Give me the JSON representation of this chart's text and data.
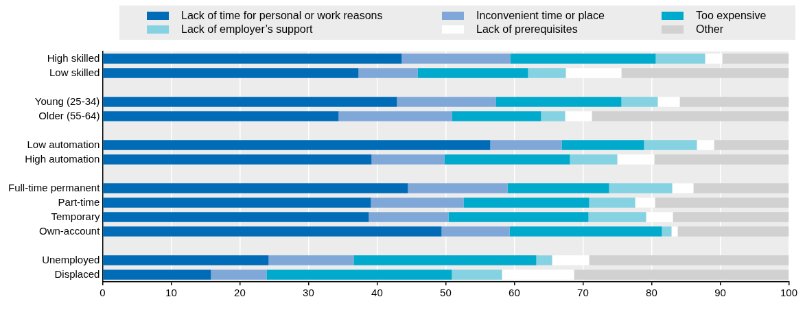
{
  "chart_data": {
    "type": "bar",
    "orientation": "horizontal",
    "stacked": true,
    "legend": "top",
    "grid": "x",
    "categories": [
      "High skilled",
      "Low skilled",
      null,
      "Young (25-34)",
      "Older (55-64)",
      null,
      "Low automation",
      "High automation",
      null,
      "Full-time permanent",
      "Part-time",
      "Temporary",
      "Own-account",
      null,
      "Unemployed",
      "Displaced"
    ],
    "xlim": [
      0,
      100
    ],
    "xticks": [
      0,
      10,
      20,
      30,
      40,
      50,
      60,
      70,
      80,
      90,
      100
    ],
    "series": [
      {
        "name": "Lack of time for personal or work reasons",
        "color": "#006bb6",
        "values": [
          43.6,
          37.3,
          null,
          42.9,
          34.4,
          null,
          56.5,
          39.2,
          null,
          44.5,
          39.1,
          38.8,
          49.4,
          null,
          24.2,
          15.8
        ]
      },
      {
        "name": "Inconvenient time or place",
        "color": "#7fa8d9",
        "values": [
          15.8,
          8.6,
          null,
          14.4,
          16.5,
          null,
          10.4,
          10.6,
          null,
          14.5,
          13.5,
          11.6,
          9.9,
          null,
          12.4,
          8.1
        ]
      },
      {
        "name": "Too expensive",
        "color": "#00aacc",
        "values": [
          21.2,
          16.1,
          null,
          18.3,
          13.0,
          null,
          12.0,
          18.3,
          null,
          14.8,
          18.3,
          20.4,
          22.2,
          null,
          26.6,
          27.0
        ]
      },
      {
        "name": "Lack of employer’s support",
        "color": "#85d2e2",
        "values": [
          7.2,
          5.5,
          null,
          5.3,
          3.5,
          null,
          7.7,
          6.9,
          null,
          9.2,
          6.7,
          8.4,
          1.4,
          null,
          2.3,
          7.3
        ]
      },
      {
        "name": "Lack of prerequisites",
        "color": "#ffffff",
        "values": [
          2.5,
          8.1,
          null,
          3.2,
          3.9,
          null,
          2.5,
          5.4,
          null,
          3.1,
          2.9,
          3.9,
          0.9,
          null,
          5.4,
          10.5
        ]
      },
      {
        "name": "Other",
        "color": "#d1d1d1",
        "values": [
          9.7,
          24.4,
          null,
          15.9,
          28.7,
          null,
          10.9,
          19.6,
          null,
          13.9,
          19.5,
          16.9,
          16.2,
          null,
          29.1,
          31.3
        ]
      }
    ]
  }
}
